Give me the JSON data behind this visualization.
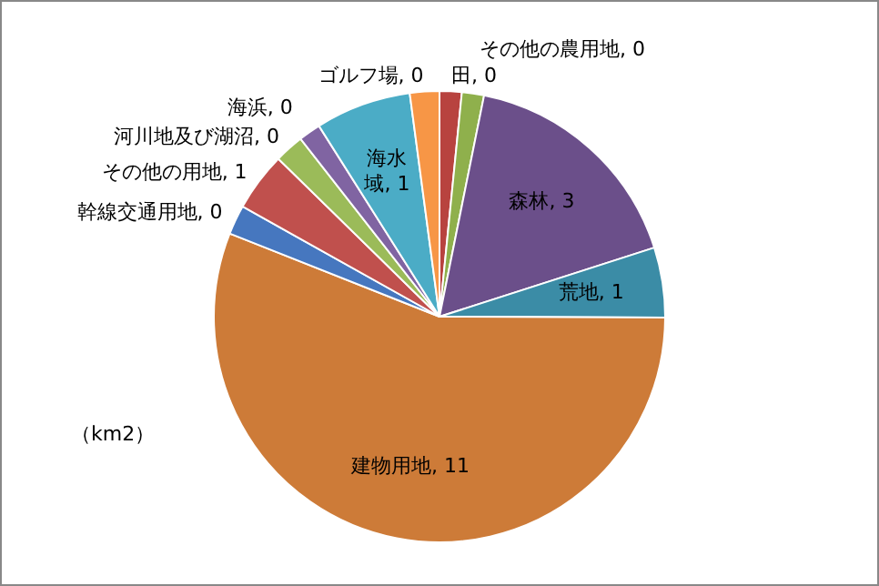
{
  "chart_data": {
    "type": "pie",
    "categories": [
      "田",
      "その他の農用地",
      "森林",
      "荒地",
      "建物用地",
      "幹線交通用地",
      "その他の用地",
      "河川地及び湖沼",
      "海浜",
      "海水域",
      "ゴルフ場"
    ],
    "values": [
      0.3,
      0.3,
      3.2,
      0.95,
      10.6,
      0.4,
      0.8,
      0.4,
      0.3,
      1.3,
      0.4
    ],
    "value_labels": [
      "0",
      "0",
      "3",
      "1",
      "11",
      "0",
      "1",
      "0",
      "0",
      "1",
      "0"
    ],
    "colors": [
      "#b8433f",
      "#8fb04c",
      "#6b4f8a",
      "#3b8ca6",
      "#cd7b38",
      "#4677bf",
      "#c0504d",
      "#9bbb59",
      "#8064a2",
      "#4bacc6",
      "#f79646"
    ],
    "legend": false,
    "annotations": [
      "（km2）"
    ]
  }
}
